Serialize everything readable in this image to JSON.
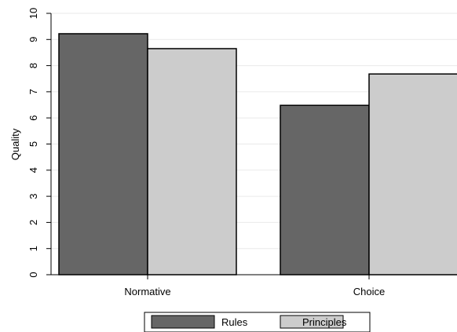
{
  "chart_data": {
    "type": "bar",
    "title": "",
    "xlabel": "",
    "ylabel": "Quality",
    "ylim": [
      0,
      10
    ],
    "yticks": [
      0,
      1,
      2,
      3,
      4,
      5,
      6,
      7,
      8,
      9,
      10
    ],
    "categories": [
      "Normative",
      "Choice"
    ],
    "series": [
      {
        "name": "Rules",
        "values": [
          9.22,
          6.48
        ],
        "color": "#666666"
      },
      {
        "name": "Principles",
        "values": [
          8.65,
          7.68
        ],
        "color": "#cccccc"
      }
    ],
    "grid": true,
    "legend_position": "bottom"
  }
}
